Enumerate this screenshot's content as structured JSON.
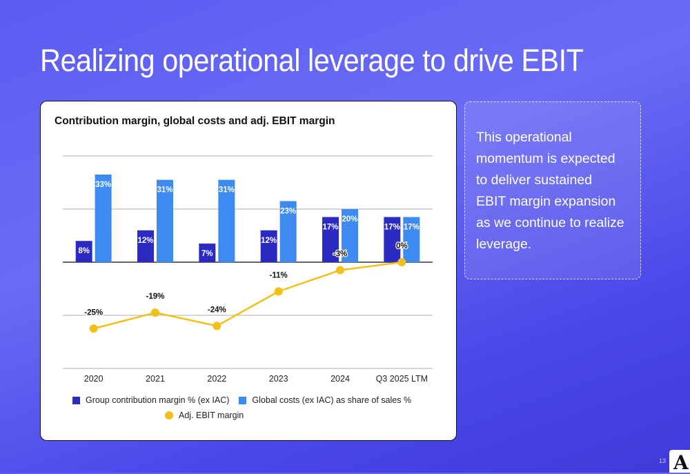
{
  "page": {
    "title": "Realizing operational leverage to drive EBIT",
    "page_number": "13",
    "logo_letter": "A"
  },
  "callout": {
    "text": "This operational momentum is expected to deliver sustained EBIT margin expansion as we continue to realize leverage."
  },
  "colors": {
    "contribution": "#2b2bc4",
    "global_costs": "#3d8af0",
    "ebit": "#f2c018",
    "baseline": "#333333",
    "grid": "#bdbdbd"
  },
  "chart_data": {
    "type": "bar",
    "title": "Contribution margin, global costs and adj. EBIT margin",
    "categories": [
      "2020",
      "2021",
      "2022",
      "2023",
      "2024",
      "Q3 2025 LTM"
    ],
    "series": [
      {
        "name": "Group contribution margin % (ex IAC)",
        "type": "bar",
        "values": [
          8,
          12,
          7,
          12,
          17,
          17
        ],
        "labels": [
          "8%",
          "12%",
          "7%",
          "12%",
          "17%",
          "17%"
        ]
      },
      {
        "name": "Global costs (ex IAC) as share of sales %",
        "type": "bar",
        "values": [
          33,
          31,
          31,
          23,
          20,
          17
        ],
        "labels": [
          "33%",
          "31%",
          "31%",
          "23%",
          "20%",
          "17%"
        ]
      },
      {
        "name": "Adj. EBIT margin",
        "type": "line",
        "values": [
          -25,
          -19,
          -24,
          -11,
          -3,
          0
        ],
        "labels": [
          "-25%",
          "-19%",
          "-24%",
          "-11%",
          "-3%",
          "0%"
        ]
      }
    ],
    "ylim": [
      -40,
      40
    ],
    "grid": true,
    "legend_position": "bottom"
  }
}
